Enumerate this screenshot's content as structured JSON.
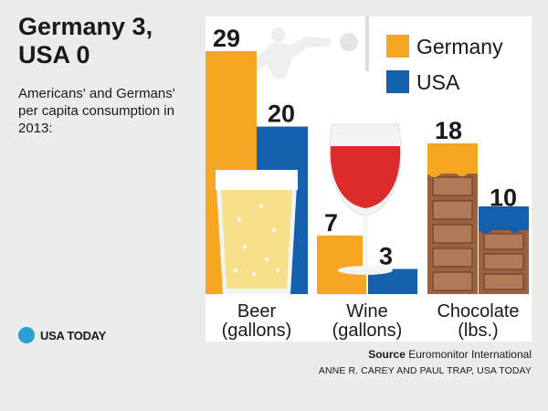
{
  "headline": "Germany 3, USA 0",
  "subhead": "Americans' and Germans' per capita consumption in 2013:",
  "brand": {
    "logo_text": "USA TODAY"
  },
  "source": {
    "label": "Source",
    "name": "Euromonitor International"
  },
  "credit": "ANNE R. CAREY AND PAUL TRAP, USA TODAY",
  "colors": {
    "germany": "#f5a623",
    "usa": "#1560ad",
    "panel": "#ffffff",
    "background": "#ececec",
    "beer": "#f8e08a",
    "wine": "#dc2b2b",
    "chocolate": "#9b6242"
  },
  "chart_data": {
    "type": "bar",
    "title": "Germany 3, USA 0",
    "subtitle": "Americans' and Germans' per capita consumption in 2013:",
    "categories": [
      "Beer (gallons)",
      "Wine (gallons)",
      "Chocolate (lbs.)"
    ],
    "category_lines": [
      [
        "Beer",
        "(gallons)"
      ],
      [
        "Wine",
        "(gallons)"
      ],
      [
        "Chocolate",
        "(lbs.)"
      ]
    ],
    "series": [
      {
        "name": "Germany",
        "values": [
          29,
          7,
          18
        ],
        "labels": [
          "29",
          "7",
          "18"
        ]
      },
      {
        "name": "USA",
        "values": [
          20,
          3,
          10
        ],
        "labels": [
          "20",
          "3",
          "10"
        ]
      }
    ],
    "legend_position": "top-right",
    "grid": false,
    "ylim": [
      0,
      29
    ]
  }
}
